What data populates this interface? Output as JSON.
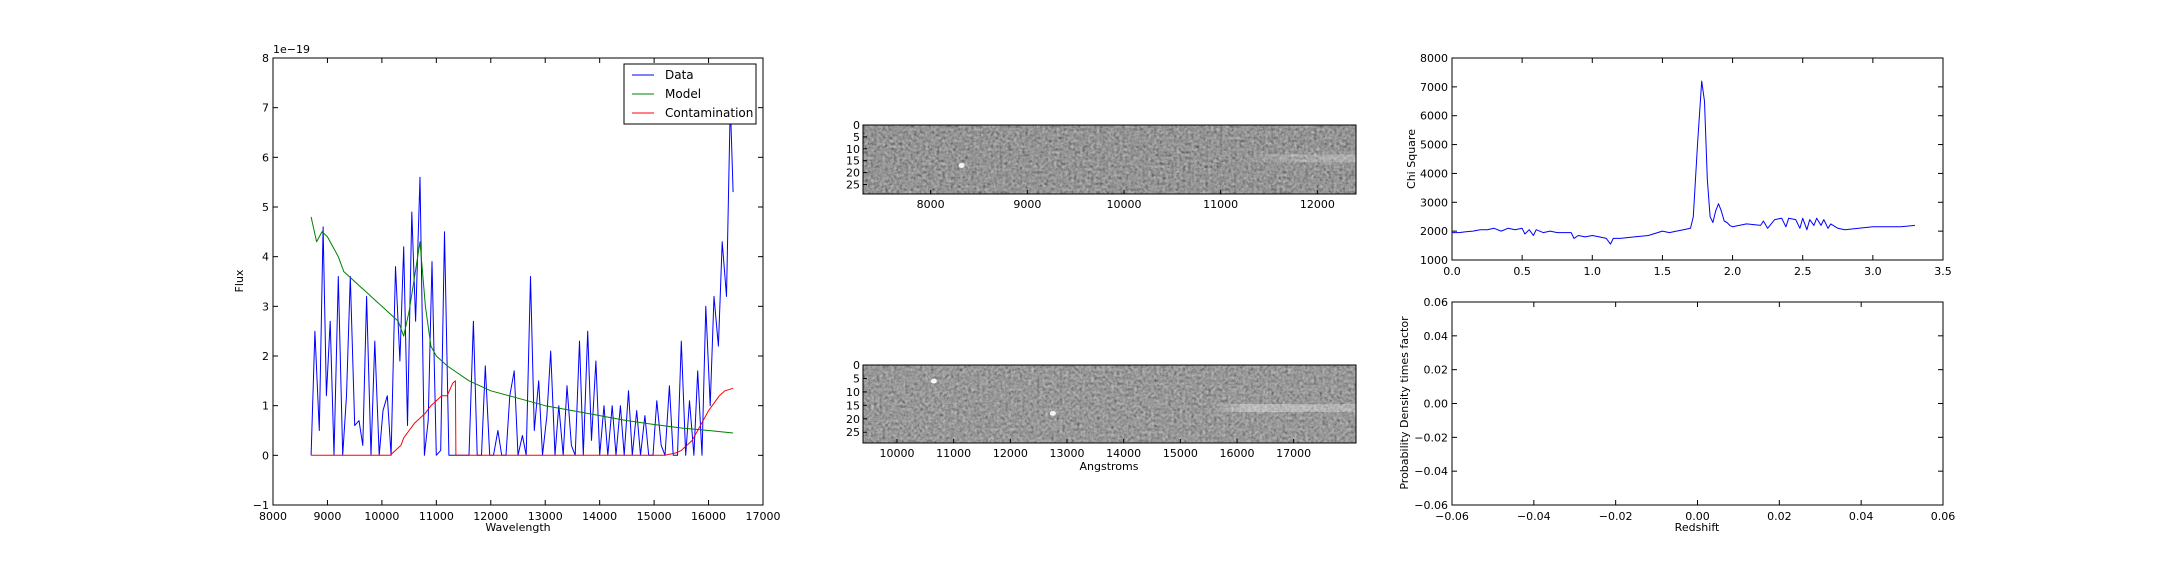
{
  "figure": {
    "spectrum_panel": {
      "xlabel": "Wavelength",
      "ylabel": "Flux",
      "offset_text": "1e−19"
    },
    "image_panel_top": {},
    "image_panel_bottom": {
      "xlabel": "Angstroms"
    },
    "chi_panel": {
      "ylabel": "Chi Square"
    },
    "pdf_panel": {
      "xlabel": "Redshift",
      "ylabel": "Probability Density times factor"
    }
  },
  "chart_data": [
    {
      "type": "line",
      "panel": "spectrum",
      "xlabel": "Wavelength",
      "ylabel": "Flux",
      "y_scale_factor": "1e-19",
      "xlim": [
        8000,
        17000
      ],
      "ylim": [
        -1,
        8
      ],
      "xticks": [
        8000,
        9000,
        10000,
        11000,
        12000,
        13000,
        14000,
        15000,
        16000,
        17000
      ],
      "yticks": [
        -1,
        0,
        1,
        2,
        3,
        4,
        5,
        6,
        7,
        8
      ],
      "grid": false,
      "legend_position": "top-right",
      "series": [
        {
          "name": "Data",
          "color": "#0000ff",
          "x": [
            8700,
            8770,
            8850,
            8920,
            8980,
            9050,
            9120,
            9200,
            9280,
            9350,
            9420,
            9500,
            9580,
            9650,
            9720,
            9800,
            9870,
            9950,
            10020,
            10100,
            10170,
            10250,
            10330,
            10400,
            10470,
            10550,
            10620,
            10700,
            10780,
            10850,
            10920,
            11000,
            11080,
            11150,
            11230,
            11300,
            11370,
            11450,
            11530,
            11600,
            11680,
            11750,
            11830,
            11900,
            11980,
            12050,
            12130,
            12200,
            12280,
            12350,
            12430,
            12500,
            12580,
            12650,
            12730,
            12800,
            12880,
            12950,
            13030,
            13100,
            13180,
            13250,
            13330,
            13400,
            13480,
            13550,
            13630,
            13700,
            13780,
            13850,
            13930,
            14000,
            14080,
            14150,
            14230,
            14300,
            14380,
            14450,
            14530,
            14600,
            14680,
            14750,
            14830,
            14900,
            14980,
            15050,
            15130,
            15200,
            15280,
            15350,
            15430,
            15500,
            15580,
            15650,
            15730,
            15800,
            15880,
            15950,
            16030,
            16100,
            16180,
            16250,
            16330,
            16400,
            16450
          ],
          "y": [
            0,
            2.5,
            0.5,
            4.6,
            1.2,
            2.7,
            0,
            3.6,
            0,
            1.2,
            3.6,
            0.6,
            0.7,
            0.2,
            3.2,
            0,
            2.3,
            0,
            0.9,
            1.2,
            0,
            3.8,
            1.9,
            4.2,
            0.6,
            4.9,
            2.7,
            5.6,
            0,
            0.7,
            3.9,
            0,
            0.1,
            4.5,
            0,
            0,
            0,
            0,
            0,
            0,
            2.7,
            0,
            0,
            1.8,
            0,
            0,
            0.5,
            0,
            0,
            1.2,
            1.7,
            0,
            0.4,
            0,
            3.6,
            0.5,
            1.5,
            0,
            0.8,
            2.1,
            0,
            1,
            0,
            1.4,
            0.2,
            0,
            2.3,
            0,
            2.5,
            0.3,
            1.9,
            0,
            1,
            0,
            1,
            0,
            1,
            0,
            1.3,
            0,
            0.9,
            0,
            0.8,
            0,
            0,
            1.1,
            0.2,
            0,
            1.4,
            0,
            0,
            2.3,
            0,
            1.1,
            0,
            1.7,
            0,
            3,
            1,
            3.2,
            2.2,
            4.3,
            3.2,
            7.1,
            5.3
          ]
        },
        {
          "name": "Model",
          "color": "#008000",
          "x": [
            8700,
            8800,
            8900,
            9000,
            9100,
            9200,
            9300,
            9400,
            9500,
            9600,
            9700,
            9800,
            9900,
            10000,
            10100,
            10200,
            10300,
            10400,
            10500,
            10600,
            10700,
            10800,
            10900,
            11000,
            11200,
            11400,
            11600,
            11800,
            12000,
            12500,
            13000,
            13500,
            14000,
            14500,
            15000,
            15500,
            16000,
            16450
          ],
          "y": [
            4.8,
            4.3,
            4.5,
            4.4,
            4.2,
            4.0,
            3.7,
            3.6,
            3.5,
            3.4,
            3.3,
            3.2,
            3.1,
            3.0,
            2.9,
            2.8,
            2.7,
            2.4,
            2.9,
            3.6,
            4.3,
            3.0,
            2.2,
            2.0,
            1.8,
            1.65,
            1.5,
            1.4,
            1.3,
            1.15,
            1.0,
            0.9,
            0.8,
            0.7,
            0.62,
            0.55,
            0.5,
            0.45
          ]
        },
        {
          "name": "Contamination",
          "color": "#ff0000",
          "x": [
            8700,
            10150,
            10250,
            10350,
            10400,
            10500,
            10600,
            10700,
            10800,
            10900,
            11000,
            11100,
            11200,
            11300,
            11350,
            11360,
            11400,
            12000,
            13000,
            14000,
            15000,
            15200,
            15400,
            15500,
            15600,
            15700,
            15800,
            15900,
            16000,
            16100,
            16200,
            16300,
            16450
          ],
          "y": [
            0,
            0,
            0.1,
            0.2,
            0.35,
            0.5,
            0.65,
            0.75,
            0.85,
            1.0,
            1.1,
            1.2,
            1.2,
            1.45,
            1.5,
            0,
            0,
            0,
            0,
            0,
            0,
            0,
            0.05,
            0.1,
            0.2,
            0.3,
            0.5,
            0.7,
            0.9,
            1.05,
            1.2,
            1.3,
            1.35
          ]
        }
      ]
    },
    {
      "type": "heatmap",
      "panel": "image-top",
      "xlim": [
        7300,
        12400
      ],
      "xticks": [
        8000,
        9000,
        10000,
        11000,
        12000
      ],
      "ylim": [
        0,
        29
      ],
      "yticks": [
        0,
        5,
        10,
        15,
        20,
        25
      ],
      "colormap": "gray",
      "features": [
        {
          "kind": "bright-spot",
          "x": 8320,
          "row": 17
        },
        {
          "kind": "trace",
          "x_from": 11200,
          "x_to": 12400,
          "row": 14
        }
      ]
    },
    {
      "type": "heatmap",
      "panel": "image-bottom",
      "xlabel": "Angstroms",
      "xlim": [
        9400,
        18100
      ],
      "xticks": [
        10000,
        11000,
        12000,
        13000,
        14000,
        15000,
        16000,
        17000
      ],
      "ylim": [
        0,
        29
      ],
      "yticks": [
        0,
        5,
        10,
        15,
        20,
        25
      ],
      "colormap": "gray",
      "features": [
        {
          "kind": "bright-spot",
          "x": 10650,
          "row": 6
        },
        {
          "kind": "bright-spot",
          "x": 12750,
          "row": 18
        },
        {
          "kind": "trace",
          "x_from": 15500,
          "x_to": 18100,
          "row": 16
        }
      ]
    },
    {
      "type": "line",
      "panel": "chi-square",
      "ylabel": "Chi Square",
      "xlim": [
        0,
        3.5
      ],
      "ylim": [
        1000,
        8000
      ],
      "xticks": [
        0.0,
        0.5,
        1.0,
        1.5,
        2.0,
        2.5,
        3.0,
        3.5
      ],
      "yticks": [
        1000,
        2000,
        3000,
        4000,
        5000,
        6000,
        7000,
        8000
      ],
      "series": [
        {
          "color": "#0000ff",
          "x": [
            0,
            0.05,
            0.1,
            0.15,
            0.2,
            0.25,
            0.3,
            0.35,
            0.4,
            0.45,
            0.5,
            0.52,
            0.55,
            0.58,
            0.6,
            0.65,
            0.7,
            0.75,
            0.8,
            0.85,
            0.87,
            0.9,
            0.95,
            1.0,
            1.05,
            1.1,
            1.13,
            1.15,
            1.2,
            1.3,
            1.4,
            1.5,
            1.55,
            1.6,
            1.65,
            1.7,
            1.72,
            1.75,
            1.78,
            1.8,
            1.82,
            1.84,
            1.86,
            1.88,
            1.9,
            1.92,
            1.94,
            1.96,
            1.98,
            2.0,
            2.1,
            2.2,
            2.22,
            2.25,
            2.3,
            2.35,
            2.38,
            2.4,
            2.45,
            2.48,
            2.5,
            2.53,
            2.55,
            2.58,
            2.6,
            2.63,
            2.65,
            2.68,
            2.7,
            2.75,
            2.8,
            2.9,
            3.0,
            3.1,
            3.2,
            3.3
          ],
          "y": [
            1950,
            1950,
            1980,
            2000,
            2050,
            2050,
            2100,
            2000,
            2100,
            2050,
            2100,
            1900,
            2050,
            1850,
            2050,
            1950,
            2000,
            1950,
            1950,
            1950,
            1750,
            1850,
            1800,
            1850,
            1800,
            1750,
            1550,
            1750,
            1750,
            1800,
            1850,
            2000,
            1950,
            2000,
            2050,
            2100,
            2500,
            5000,
            7200,
            6500,
            3800,
            2500,
            2300,
            2700,
            2950,
            2700,
            2350,
            2300,
            2200,
            2150,
            2250,
            2200,
            2350,
            2100,
            2400,
            2450,
            2150,
            2450,
            2400,
            2100,
            2450,
            2050,
            2400,
            2200,
            2450,
            2200,
            2400,
            2100,
            2250,
            2100,
            2050,
            2100,
            2150,
            2150,
            2150,
            2200
          ]
        }
      ]
    },
    {
      "type": "line",
      "panel": "probability-density",
      "xlabel": "Redshift",
      "ylabel": "Probability Density times factor",
      "xlim": [
        -0.06,
        0.06
      ],
      "ylim": [
        -0.06,
        0.06
      ],
      "xticks": [
        -0.06,
        -0.04,
        -0.02,
        0.0,
        0.02,
        0.04,
        0.06
      ],
      "yticks": [
        -0.06,
        -0.04,
        -0.02,
        0.0,
        0.02,
        0.04,
        0.06
      ],
      "series": []
    }
  ]
}
